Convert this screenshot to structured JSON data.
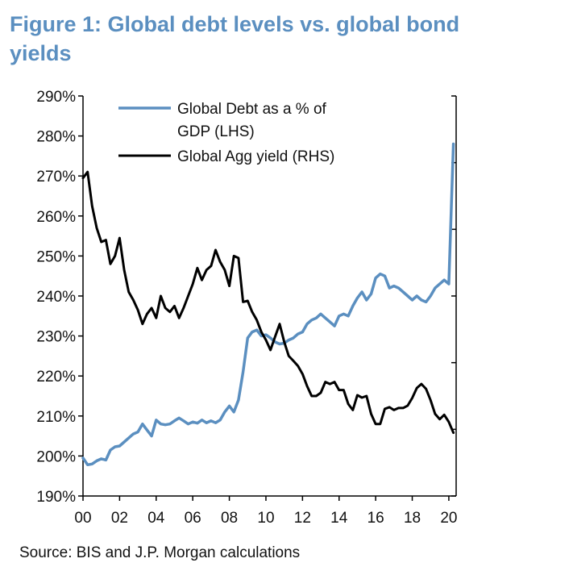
{
  "chart_data": {
    "type": "line",
    "title": "Figure 1: Global debt levels vs. global bond yields",
    "title_lines": [
      "Figure 1: Global debt levels vs. global bond",
      "yields"
    ],
    "source": "Source: BIS and J.P. Morgan calculations",
    "xlabel": "",
    "ylabel": "",
    "xlim": [
      2000,
      2020.4
    ],
    "ylim": [
      190,
      290
    ],
    "y2lim": [
      0,
      1
    ],
    "x_tick_values": [
      2000,
      2002,
      2004,
      2006,
      2008,
      2010,
      2012,
      2014,
      2016,
      2018,
      2020
    ],
    "x_tick_labels": [
      "00",
      "02",
      "04",
      "06",
      "08",
      "10",
      "12",
      "14",
      "16",
      "18",
      "20"
    ],
    "y_tick_values": [
      190,
      200,
      210,
      220,
      230,
      240,
      250,
      260,
      270,
      280,
      290
    ],
    "y_tick_labels": [
      "190%",
      "200%",
      "210%",
      "220%",
      "230%",
      "240%",
      "250%",
      "260%",
      "270%",
      "280%",
      "290%"
    ],
    "y2_tick_count": 7,
    "legend": [
      "Global Debt as a % of GDP (LHS)",
      "Global Agg yield (RHS)"
    ],
    "legend_lines": [
      [
        "Global Debt as a % of",
        "GDP (LHS)"
      ],
      [
        "Global Agg yield (RHS)"
      ]
    ],
    "series": [
      {
        "name": "Global Debt as a % of GDP (LHS)",
        "axis": "left",
        "color": "#5b8fc0",
        "x": [
          2000.0,
          2000.25,
          2000.5,
          2000.75,
          2001.0,
          2001.25,
          2001.5,
          2001.75,
          2002.0,
          2002.25,
          2002.5,
          2002.75,
          2003.0,
          2003.25,
          2003.5,
          2003.75,
          2004.0,
          2004.25,
          2004.5,
          2004.75,
          2005.0,
          2005.25,
          2005.5,
          2005.75,
          2006.0,
          2006.25,
          2006.5,
          2006.75,
          2007.0,
          2007.25,
          2007.5,
          2007.75,
          2008.0,
          2008.25,
          2008.5,
          2008.75,
          2009.0,
          2009.25,
          2009.5,
          2009.75,
          2010.0,
          2010.25,
          2010.5,
          2010.75,
          2011.0,
          2011.25,
          2011.5,
          2011.75,
          2012.0,
          2012.25,
          2012.5,
          2012.75,
          2013.0,
          2013.25,
          2013.5,
          2013.75,
          2014.0,
          2014.25,
          2014.5,
          2014.75,
          2015.0,
          2015.25,
          2015.5,
          2015.75,
          2016.0,
          2016.25,
          2016.5,
          2016.75,
          2017.0,
          2017.25,
          2017.5,
          2017.75,
          2018.0,
          2018.25,
          2018.5,
          2018.75,
          2019.0,
          2019.25,
          2019.5,
          2019.75,
          2020.0,
          2020.25
        ],
        "values": [
          199.5,
          197.8,
          198.0,
          198.8,
          199.3,
          199.0,
          201.5,
          202.3,
          202.5,
          203.5,
          204.5,
          205.5,
          206.0,
          208.0,
          206.5,
          205.0,
          209.0,
          208.0,
          207.8,
          208.0,
          208.8,
          209.5,
          208.8,
          208.0,
          208.5,
          208.2,
          209.0,
          208.3,
          208.8,
          208.3,
          209.0,
          211.0,
          212.5,
          211.0,
          214.0,
          221.0,
          229.5,
          231.0,
          231.5,
          230.0,
          230.3,
          229.5,
          228.5,
          228.0,
          228.2,
          229.0,
          229.5,
          230.5,
          231.0,
          233.0,
          234.0,
          234.5,
          235.5,
          234.5,
          233.5,
          232.5,
          235.0,
          235.5,
          235.0,
          237.5,
          239.5,
          241.0,
          239.0,
          240.5,
          244.5,
          245.5,
          245.0,
          242.0,
          242.5,
          242.0,
          241.0,
          240.0,
          239.0,
          240.0,
          239.0,
          238.5,
          240.0,
          242.0,
          243.0,
          244.0,
          243.0,
          278.0
        ]
      },
      {
        "name": "Global Agg yield (RHS)",
        "axis": "right",
        "color": "#000000",
        "x": [
          2000.0,
          2000.25,
          2000.5,
          2000.75,
          2001.0,
          2001.25,
          2001.5,
          2001.75,
          2002.0,
          2002.25,
          2002.5,
          2002.75,
          2003.0,
          2003.25,
          2003.5,
          2003.75,
          2004.0,
          2004.25,
          2004.5,
          2004.75,
          2005.0,
          2005.25,
          2005.5,
          2005.75,
          2006.0,
          2006.25,
          2006.5,
          2006.75,
          2007.0,
          2007.25,
          2007.5,
          2007.75,
          2008.0,
          2008.25,
          2008.5,
          2008.75,
          2009.0,
          2009.25,
          2009.5,
          2009.75,
          2010.0,
          2010.25,
          2010.5,
          2010.75,
          2011.0,
          2011.25,
          2011.5,
          2011.75,
          2012.0,
          2012.25,
          2012.5,
          2012.75,
          2013.0,
          2013.25,
          2013.5,
          2013.75,
          2014.0,
          2014.25,
          2014.5,
          2014.75,
          2015.0,
          2015.25,
          2015.5,
          2015.75,
          2016.0,
          2016.25,
          2016.5,
          2016.75,
          2017.0,
          2017.25,
          2017.5,
          2017.75,
          2018.0,
          2018.25,
          2018.5,
          2018.75,
          2019.0,
          2019.25,
          2019.5,
          2019.75,
          2020.0,
          2020.25
        ],
        "values": [
          0.795,
          0.81,
          0.725,
          0.67,
          0.635,
          0.64,
          0.58,
          0.6,
          0.645,
          0.565,
          0.51,
          0.49,
          0.465,
          0.43,
          0.455,
          0.47,
          0.445,
          0.5,
          0.47,
          0.46,
          0.475,
          0.445,
          0.47,
          0.5,
          0.53,
          0.57,
          0.54,
          0.565,
          0.575,
          0.615,
          0.585,
          0.565,
          0.525,
          0.6,
          0.595,
          0.485,
          0.488,
          0.46,
          0.44,
          0.41,
          0.39,
          0.365,
          0.398,
          0.43,
          0.385,
          0.35,
          0.338,
          0.325,
          0.305,
          0.275,
          0.25,
          0.25,
          0.258,
          0.285,
          0.28,
          0.285,
          0.265,
          0.265,
          0.23,
          0.215,
          0.252,
          0.246,
          0.25,
          0.205,
          0.18,
          0.18,
          0.218,
          0.222,
          0.215,
          0.22,
          0.22,
          0.226,
          0.245,
          0.27,
          0.28,
          0.268,
          0.24,
          0.205,
          0.192,
          0.203,
          0.185,
          0.158
        ]
      }
    ]
  }
}
